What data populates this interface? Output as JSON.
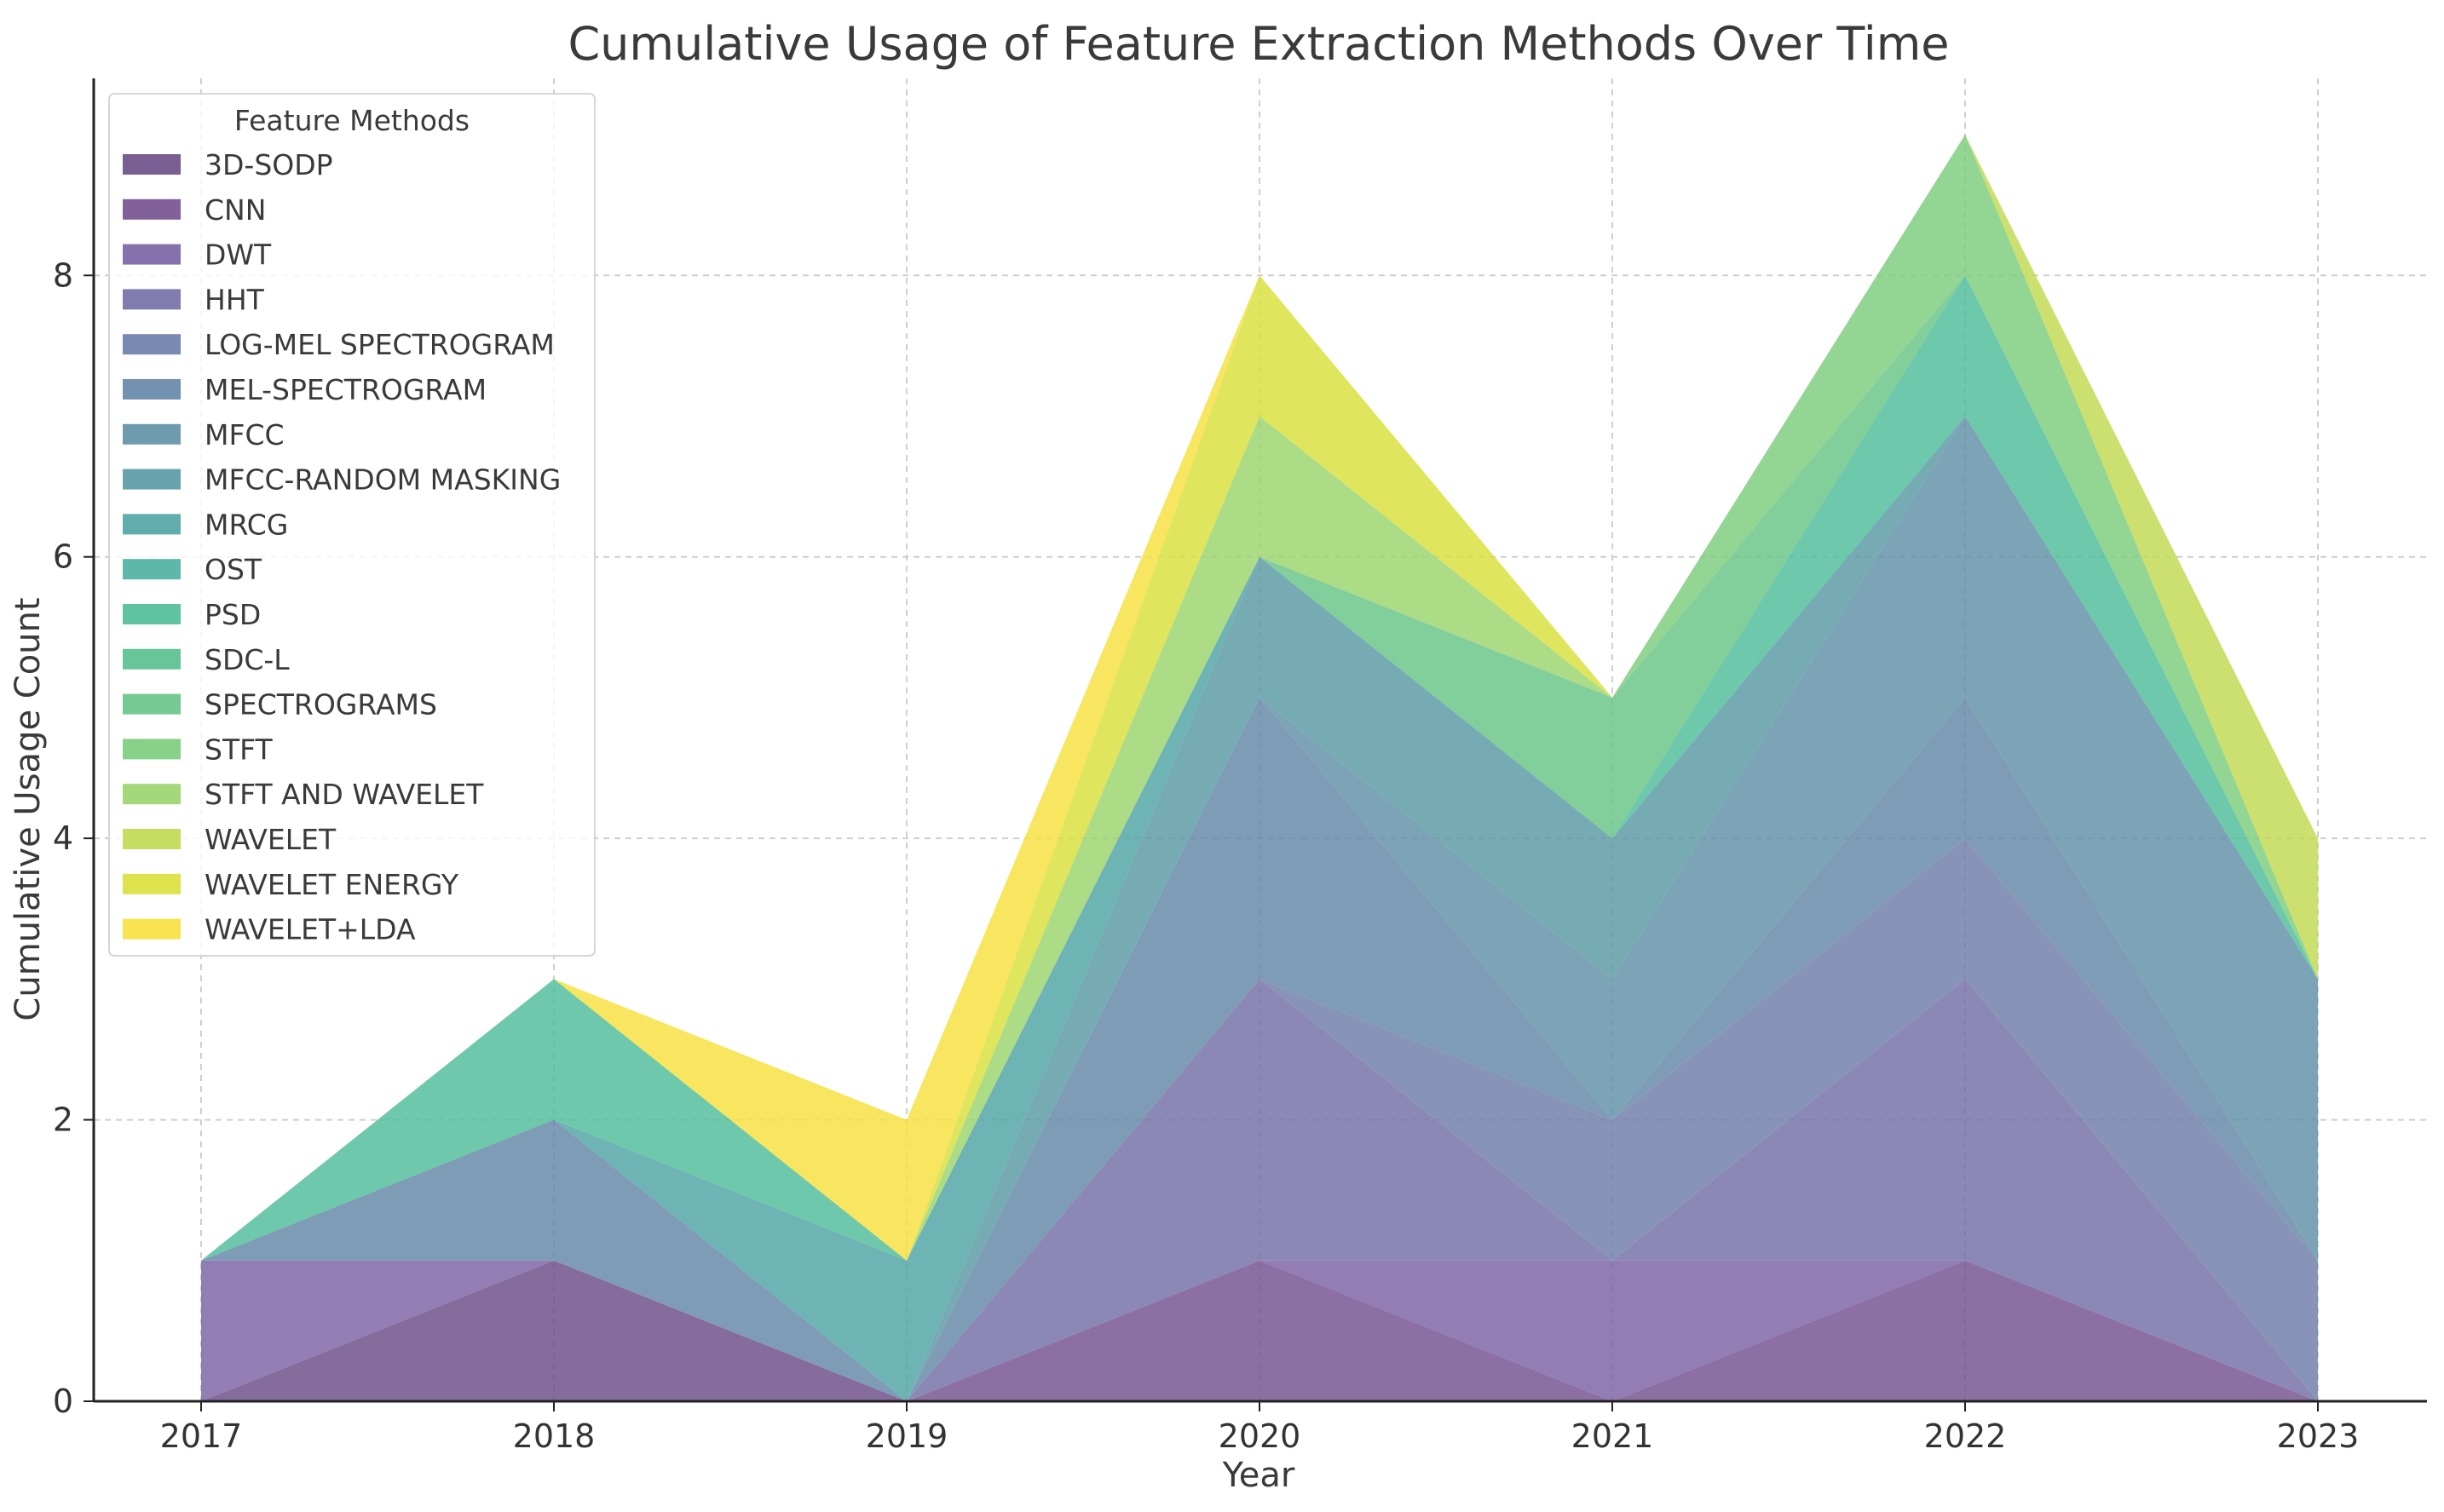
{
  "chart_data": {
    "type": "area",
    "stacked": true,
    "title": "Cumulative Usage of Feature Extraction Methods Over Time",
    "xlabel": "Year",
    "ylabel": "Cumulative Usage Count",
    "x": [
      "2017",
      "2018",
      "2019",
      "2020",
      "2021",
      "2022",
      "2023"
    ],
    "ylim": [
      0,
      9.4
    ],
    "yticks": [
      0,
      2,
      4,
      6,
      8
    ],
    "grid": true,
    "legend": {
      "title": "Feature Methods",
      "placement": "top-left"
    },
    "series": [
      {
        "name": "3D-SODP",
        "color": "#6a4c86",
        "values": [
          0,
          1,
          0,
          0,
          0,
          0,
          0
        ]
      },
      {
        "name": "CNN",
        "color": "#74508f",
        "values": [
          0,
          0,
          0,
          1,
          0,
          1,
          0
        ]
      },
      {
        "name": "DWT",
        "color": "#7a62a3",
        "values": [
          1,
          0,
          0,
          0,
          1,
          0,
          0
        ]
      },
      {
        "name": "HHT",
        "color": "#736ea5",
        "values": [
          0,
          0,
          0,
          2,
          0,
          2,
          0
        ]
      },
      {
        "name": "LOG-MEL SPECTROGRAM",
        "color": "#6c7ca8",
        "values": [
          0,
          0,
          0,
          0,
          1,
          1,
          1
        ]
      },
      {
        "name": "MEL-SPECTROGRAM",
        "color": "#6386a6",
        "values": [
          0,
          1,
          0,
          2,
          0,
          1,
          0
        ]
      },
      {
        "name": "MFCC",
        "color": "#5f90a6",
        "values": [
          0,
          0,
          0,
          0,
          1,
          2,
          2
        ]
      },
      {
        "name": "MFCC-RANDOM MASKING",
        "color": "#5898a4",
        "values": [
          0,
          0,
          0,
          1,
          1,
          0,
          0
        ]
      },
      {
        "name": "MRCG",
        "color": "#4fa4a3",
        "values": [
          0,
          0,
          1,
          0,
          0,
          0,
          0
        ]
      },
      {
        "name": "OST",
        "color": "#4cb0a0",
        "values": [
          0,
          0,
          0,
          0,
          0,
          0,
          0
        ]
      },
      {
        "name": "PSD",
        "color": "#4ebc98",
        "values": [
          0,
          1,
          0,
          0,
          0,
          1,
          0
        ]
      },
      {
        "name": "SDC-L",
        "color": "#55c08e",
        "values": [
          0,
          0,
          0,
          0,
          0,
          0,
          0
        ]
      },
      {
        "name": "SPECTROGRAMS",
        "color": "#66c485",
        "values": [
          0,
          0,
          0,
          0,
          1,
          0,
          0
        ]
      },
      {
        "name": "STFT",
        "color": "#7bcc7b",
        "values": [
          0,
          0,
          0,
          0,
          0,
          1,
          0
        ]
      },
      {
        "name": "STFT AND WAVELET",
        "color": "#9bd46b",
        "values": [
          0,
          0,
          0,
          1,
          0,
          0,
          0
        ]
      },
      {
        "name": "WAVELET",
        "color": "#bfd94f",
        "values": [
          0,
          0,
          0,
          0,
          0,
          0,
          1
        ]
      },
      {
        "name": "WAVELET ENERGY",
        "color": "#d9df3a",
        "values": [
          0,
          0,
          0,
          1,
          0,
          0,
          0
        ]
      },
      {
        "name": "WAVELET+LDA",
        "color": "#f6e13d",
        "values": [
          0,
          0,
          1,
          0,
          0,
          0,
          0
        ]
      }
    ]
  }
}
